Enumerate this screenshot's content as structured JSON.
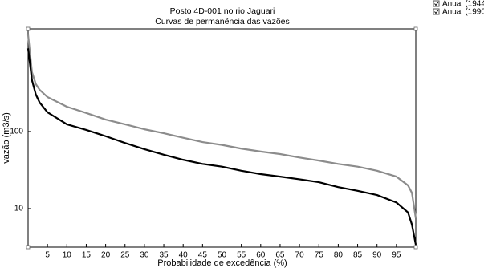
{
  "chart_data": {
    "type": "line",
    "title": "Posto 4D-001 no rio Jaguari",
    "subtitle": "Curvas de permanência das vazões",
    "x_label": "Probabilidade de excedência (%)",
    "y_label": "vazão (m3/s)",
    "log_y": true,
    "grid": false,
    "legend_position": "top-right",
    "xlim": [
      0,
      100
    ],
    "xticks": [
      5,
      10,
      15,
      20,
      25,
      30,
      35,
      40,
      45,
      50,
      55,
      60,
      65,
      70,
      75,
      80,
      85,
      90,
      95
    ],
    "ylim": [
      3.16,
      2150
    ],
    "yticks": [
      10,
      100
    ],
    "x": [
      0,
      1,
      2,
      3,
      5,
      10,
      15,
      20,
      25,
      30,
      35,
      40,
      45,
      50,
      55,
      60,
      65,
      70,
      75,
      80,
      85,
      90,
      95,
      98,
      99,
      100
    ],
    "series": [
      {
        "name": "Anual (1944",
        "color": "#8c8c8c",
        "values": [
          1800,
          590,
          412,
          347,
          280,
          210,
          174,
          143,
          124,
          107,
          95,
          83,
          73,
          67,
          60,
          55,
          51,
          46,
          42,
          38,
          35,
          31,
          26,
          20,
          16,
          7.5
        ]
      },
      {
        "name": "Anual (1990",
        "color": "#000000",
        "values": [
          1200,
          464,
          302,
          237,
          178,
          124,
          105,
          87,
          71,
          59,
          50,
          43,
          38,
          35,
          31,
          28,
          26,
          24,
          22,
          19,
          17,
          15,
          12,
          8.9,
          6.2,
          3.4
        ]
      }
    ]
  }
}
